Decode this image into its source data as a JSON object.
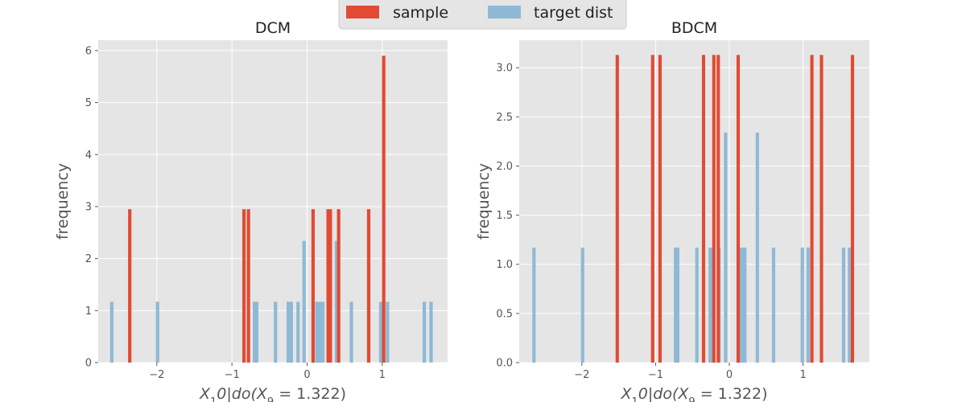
{
  "legend": {
    "placement": "top-center",
    "items": [
      {
        "label": "sample",
        "color": "#e24a33"
      },
      {
        "label": "target dist",
        "color": "#8eb9d5"
      }
    ]
  },
  "style": {
    "plot_background": "#e5e5e5",
    "grid_color": "#ffffff",
    "sample_color": "#e24a33",
    "target_color": "#8eb9d5"
  },
  "chart_data": [
    {
      "type": "bar",
      "title": "DCM",
      "xlabel": "X_10 | do(X_9 = 1.322)",
      "xlabel_parts": {
        "main": "X",
        "sub1": "1",
        "rest": "0|do(X",
        "sub2": "9",
        "tail": " = 1.322)"
      },
      "ylabel": "frequency",
      "xlim": [
        -2.78,
        1.87
      ],
      "ylim": [
        0,
        6.2
      ],
      "grid": true,
      "bar_width": 0.045,
      "xticks": [
        {
          "value": -2,
          "label": "−2"
        },
        {
          "value": -1,
          "label": "−1"
        },
        {
          "value": 0,
          "label": "0"
        },
        {
          "value": 1,
          "label": "1"
        }
      ],
      "yticks": [
        {
          "value": 0,
          "label": "0"
        },
        {
          "value": 1,
          "label": "1"
        },
        {
          "value": 2,
          "label": "2"
        },
        {
          "value": 3,
          "label": "3"
        },
        {
          "value": 4,
          "label": "4"
        },
        {
          "value": 5,
          "label": "5"
        },
        {
          "value": 6,
          "label": "6"
        }
      ],
      "series": [
        {
          "name": "target dist",
          "color": "#8eb9d5",
          "bars": [
            {
              "x": -2.6,
              "y": 1.17
            },
            {
              "x": -1.99,
              "y": 1.17
            },
            {
              "x": -0.7,
              "y": 1.17
            },
            {
              "x": -0.67,
              "y": 1.17
            },
            {
              "x": -0.42,
              "y": 1.17
            },
            {
              "x": -0.25,
              "y": 1.17
            },
            {
              "x": -0.21,
              "y": 1.17
            },
            {
              "x": -0.12,
              "y": 1.17
            },
            {
              "x": -0.04,
              "y": 2.34
            },
            {
              "x": 0.13,
              "y": 1.17
            },
            {
              "x": 0.17,
              "y": 1.17
            },
            {
              "x": 0.21,
              "y": 1.17
            },
            {
              "x": 0.39,
              "y": 2.34
            },
            {
              "x": 0.59,
              "y": 1.17
            },
            {
              "x": 0.98,
              "y": 1.17
            },
            {
              "x": 1.07,
              "y": 1.17
            },
            {
              "x": 1.56,
              "y": 1.17
            },
            {
              "x": 1.65,
              "y": 1.17
            }
          ]
        },
        {
          "name": "sample",
          "color": "#e24a33",
          "bars": [
            {
              "x": -2.36,
              "y": 2.95
            },
            {
              "x": -0.84,
              "y": 2.95
            },
            {
              "x": -0.78,
              "y": 2.95
            },
            {
              "x": 0.08,
              "y": 2.95
            },
            {
              "x": 0.28,
              "y": 2.95
            },
            {
              "x": 0.31,
              "y": 2.95
            },
            {
              "x": 0.42,
              "y": 2.95
            },
            {
              "x": 0.82,
              "y": 2.95
            },
            {
              "x": 1.02,
              "y": 5.9
            }
          ]
        }
      ]
    },
    {
      "type": "bar",
      "title": "BDCM",
      "xlabel": "X_10 | do(X_9 = 1.322)",
      "xlabel_parts": {
        "main": "X",
        "sub1": "1",
        "rest": "0|do(X",
        "sub2": "9",
        "tail": " = 1.322)"
      },
      "ylabel": "frequency",
      "xlim": [
        -2.85,
        1.9
      ],
      "ylim": [
        0,
        3.28
      ],
      "grid": true,
      "bar_width": 0.045,
      "xticks": [
        {
          "value": -2,
          "label": "−2"
        },
        {
          "value": -1,
          "label": "−1"
        },
        {
          "value": 0,
          "label": "0"
        },
        {
          "value": 1,
          "label": "1"
        }
      ],
      "yticks": [
        {
          "value": 0.0,
          "label": "0.0"
        },
        {
          "value": 0.5,
          "label": "0.5"
        },
        {
          "value": 1.0,
          "label": "1.0"
        },
        {
          "value": 1.5,
          "label": "1.5"
        },
        {
          "value": 2.0,
          "label": "2.0"
        },
        {
          "value": 2.5,
          "label": "2.5"
        },
        {
          "value": 3.0,
          "label": "3.0"
        }
      ],
      "series": [
        {
          "name": "target dist",
          "color": "#8eb9d5",
          "bars": [
            {
              "x": -2.65,
              "y": 1.17
            },
            {
              "x": -1.99,
              "y": 1.17
            },
            {
              "x": -0.73,
              "y": 1.17
            },
            {
              "x": -0.7,
              "y": 1.17
            },
            {
              "x": -0.44,
              "y": 1.17
            },
            {
              "x": -0.26,
              "y": 1.17
            },
            {
              "x": -0.22,
              "y": 1.17
            },
            {
              "x": -0.14,
              "y": 1.17
            },
            {
              "x": -0.05,
              "y": 2.34
            },
            {
              "x": 0.13,
              "y": 1.17
            },
            {
              "x": 0.17,
              "y": 1.17
            },
            {
              "x": 0.21,
              "y": 1.17
            },
            {
              "x": 0.38,
              "y": 2.34
            },
            {
              "x": 0.6,
              "y": 1.17
            },
            {
              "x": 0.99,
              "y": 1.17
            },
            {
              "x": 1.07,
              "y": 1.17
            },
            {
              "x": 1.55,
              "y": 1.17
            },
            {
              "x": 1.63,
              "y": 1.17
            }
          ]
        },
        {
          "name": "sample",
          "color": "#e24a33",
          "bars": [
            {
              "x": -1.52,
              "y": 3.13
            },
            {
              "x": -1.04,
              "y": 3.13
            },
            {
              "x": -0.94,
              "y": 3.13
            },
            {
              "x": -0.35,
              "y": 3.13
            },
            {
              "x": -0.21,
              "y": 3.13
            },
            {
              "x": -0.15,
              "y": 3.13
            },
            {
              "x": 0.12,
              "y": 3.13
            },
            {
              "x": 1.12,
              "y": 3.13
            },
            {
              "x": 1.25,
              "y": 3.13
            },
            {
              "x": 1.67,
              "y": 3.13
            }
          ]
        }
      ]
    }
  ]
}
